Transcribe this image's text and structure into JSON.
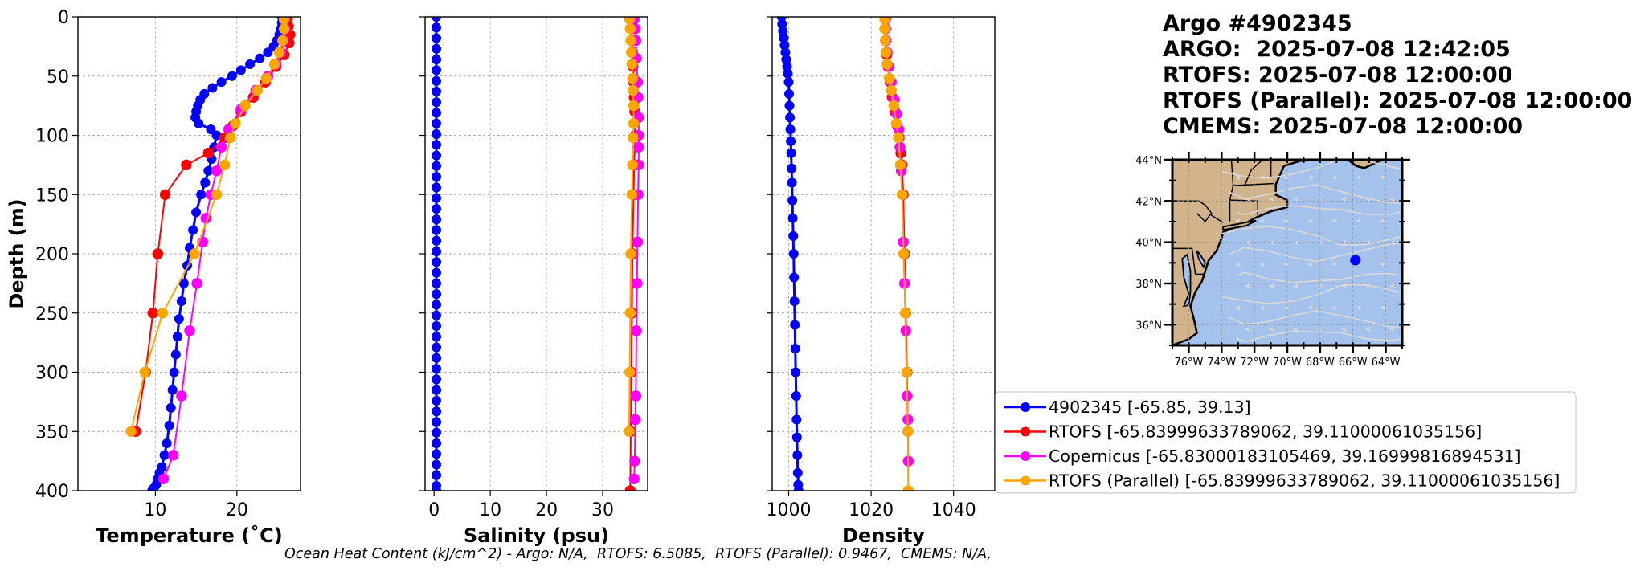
{
  "header": {
    "title": "Argo #4902345",
    "argo_time": "ARGO:  2025-07-08 12:42:05",
    "rtofs_time": "RTOFS: 2025-07-08 12:00:00",
    "rtofs_parallel_time": "RTOFS (Parallel): 2025-07-08 12:00:00",
    "cmems_time": "CMEMS: 2025-07-08 12:00:00"
  },
  "footer": {
    "ohc_text": "Ocean Heat Content (kJ/cm^2) - Argo: N/A,  RTOFS: 6.5085,  RTOFS (Parallel): 0.9467,  CMEMS: N/A,"
  },
  "colors": {
    "argo": "#0000ff",
    "rtofs": "#ff0000",
    "copernicus": "#ff00ff",
    "rtofs_parallel": "#ffa500",
    "land": "#d2b48c",
    "ocean": "#a4c2eb",
    "streamline": "#d9d9d9"
  },
  "legend": {
    "entries": [
      {
        "key": "argo",
        "label": "4902345 [-65.85, 39.13]"
      },
      {
        "key": "rtofs",
        "label": "RTOFS [-65.83999633789062, 39.11000061035156]"
      },
      {
        "key": "copernicus",
        "label": "Copernicus [-65.83000183105469, 39.16999816894531]"
      },
      {
        "key": "rtofs_parallel",
        "label": "RTOFS (Parallel) [-65.83999633789062, 39.11000061035156]"
      }
    ]
  },
  "map": {
    "lat_ticks": [
      {
        "value": 44,
        "label": "44°N"
      },
      {
        "value": 42,
        "label": "42°N"
      },
      {
        "value": 40,
        "label": "40°N"
      },
      {
        "value": 38,
        "label": "38°N"
      },
      {
        "value": 36,
        "label": "36°N"
      }
    ],
    "lon_ticks": [
      {
        "value": -76,
        "label": "76°W"
      },
      {
        "value": -74,
        "label": "74°W"
      },
      {
        "value": -72,
        "label": "72°W"
      },
      {
        "value": -70,
        "label": "70°W"
      },
      {
        "value": -68,
        "label": "68°W"
      },
      {
        "value": -66,
        "label": "66°W"
      },
      {
        "value": -64,
        "label": "64°W"
      }
    ],
    "lon_range": [
      -77,
      -63
    ],
    "lat_range": [
      35,
      44
    ],
    "float_location": {
      "lon": -65.85,
      "lat": 39.13
    }
  },
  "chart_data": [
    {
      "type": "line",
      "xlabel": "Temperature (˚C)",
      "ylabel": "Depth (m)",
      "xlim": [
        0.5,
        27.8
      ],
      "ylim": [
        400,
        0
      ],
      "xticks": [
        10,
        20
      ],
      "yticks": [
        0,
        50,
        100,
        150,
        200,
        250,
        300,
        350,
        400
      ],
      "series": [
        {
          "key": "argo",
          "marker_size": 7,
          "x": [
            25.5,
            25.5,
            25.4,
            25.2,
            24.9,
            24.5,
            23.8,
            22.8,
            21.6,
            20.5,
            19.4,
            18.1,
            17.0,
            16.0,
            15.5,
            15.2,
            15.0,
            14.9,
            15.3,
            16.8,
            17.5,
            17.2,
            16.9,
            16.5,
            16.1,
            15.6,
            15.0,
            14.6,
            14.2,
            13.9,
            13.5,
            13.2,
            12.9,
            12.7,
            12.5,
            12.3,
            12.1,
            11.9,
            11.7,
            11.4,
            11.1,
            10.8,
            10.5,
            10.3,
            10.1,
            9.8,
            9.6
          ],
          "y": [
            0,
            5,
            10,
            15,
            20,
            25,
            30,
            35,
            40,
            45,
            50,
            55,
            60,
            65,
            70,
            75,
            80,
            85,
            90,
            95,
            100,
            110,
            120,
            130,
            140,
            150,
            165,
            180,
            195,
            210,
            225,
            240,
            255,
            270,
            285,
            300,
            315,
            330,
            345,
            360,
            370,
            380,
            385,
            390,
            395,
            398,
            400
          ]
        },
        {
          "key": "rtofs",
          "marker_size": 8,
          "x": [
            26.2,
            26.3,
            26.5,
            26.4,
            25.8,
            24.8,
            23.5,
            22.0,
            20.5,
            19.5,
            18.5,
            16.5,
            13.8,
            11.2,
            10.3,
            9.7,
            8.8,
            7.6
          ],
          "y": [
            2,
            8,
            15,
            22,
            32,
            42,
            55,
            68,
            80,
            92,
            102,
            115,
            125,
            150,
            200,
            250,
            300,
            350
          ]
        },
        {
          "key": "copernicus",
          "marker_size": 8,
          "x": [
            25.8,
            25.9,
            25.7,
            25.4,
            24.8,
            23.8,
            22.3,
            20.5,
            19.0,
            18.1,
            17.5,
            16.8,
            16.2,
            15.8,
            15.1,
            14.2,
            13.2,
            12.2,
            11.0
          ],
          "y": [
            2,
            10,
            20,
            30,
            40,
            50,
            62,
            78,
            95,
            110,
            130,
            150,
            170,
            190,
            225,
            265,
            320,
            370,
            390
          ]
        },
        {
          "key": "rtofs_parallel",
          "marker_size": 8,
          "x": [
            25.8,
            25.8,
            25.6,
            25.2,
            24.6,
            23.6,
            22.5,
            21.0,
            19.8,
            19.2,
            18.5,
            17.5,
            14.8,
            10.9,
            8.7,
            7.0
          ],
          "y": [
            2,
            10,
            20,
            30,
            40,
            52,
            62,
            75,
            90,
            102,
            125,
            150,
            200,
            250,
            300,
            350
          ]
        }
      ]
    },
    {
      "type": "line",
      "xlabel": "Salinity (psu)",
      "ylabel": "",
      "xlim": [
        -1.6,
        38
      ],
      "ylim": [
        400,
        0
      ],
      "xticks": [
        0,
        10,
        20,
        30
      ],
      "yticks": [
        0,
        50,
        100,
        150,
        200,
        250,
        300,
        350,
        400
      ],
      "series": [
        {
          "key": "argo",
          "marker_size": 7,
          "x": [
            0.4,
            0.4,
            0.4,
            0.4,
            0.4,
            0.4,
            0.4,
            0.4,
            0.4,
            0.4,
            0.4,
            0.4,
            0.4,
            0.4,
            0.4,
            0.4,
            0.4,
            0.4,
            0.4,
            0.4,
            0.4,
            0.4,
            0.4,
            0.4,
            0.4,
            0.4,
            0.4,
            0.4,
            0.4,
            0.4,
            0.4,
            0.4,
            0.4,
            0.4,
            0.4,
            0.4,
            0.4,
            0.4,
            0.4,
            0.4,
            0.4,
            0.4,
            0.4,
            0.4,
            0.4,
            0.4
          ],
          "y": [
            0,
            9,
            18,
            27,
            36,
            45,
            54,
            63,
            72,
            81,
            90,
            99,
            108,
            117,
            126,
            135,
            144,
            153,
            162,
            171,
            180,
            189,
            198,
            207,
            216,
            225,
            234,
            243,
            252,
            261,
            270,
            279,
            288,
            297,
            306,
            315,
            324,
            333,
            342,
            351,
            360,
            369,
            378,
            387,
            396,
            400
          ]
        },
        {
          "key": "rtofs",
          "marker_size": 8,
          "x": [
            35.0,
            35.1,
            35.2,
            35.3,
            35.4,
            35.5,
            35.6,
            35.7,
            35.8,
            35.6,
            35.5,
            35.3,
            35.2,
            35.1,
            35.0,
            34.9
          ],
          "y": [
            2,
            10,
            20,
            30,
            42,
            55,
            68,
            80,
            100,
            125,
            150,
            200,
            250,
            300,
            350,
            400
          ]
        },
        {
          "key": "copernicus",
          "marker_size": 8,
          "x": [
            35.6,
            35.8,
            35.9,
            36.0,
            36.2,
            36.3,
            36.4,
            36.4,
            36.4,
            36.4,
            36.3,
            36.2,
            36.1,
            36.0,
            35.9,
            35.8,
            35.7,
            35.6
          ],
          "y": [
            2,
            10,
            20,
            35,
            55,
            68,
            85,
            100,
            110,
            125,
            150,
            190,
            225,
            265,
            320,
            340,
            375,
            390
          ]
        },
        {
          "key": "rtofs_parallel",
          "marker_size": 8,
          "x": [
            34.8,
            34.9,
            35.0,
            35.1,
            35.2,
            35.3,
            35.4,
            35.5,
            35.5,
            35.4,
            35.3,
            35.2,
            35.0,
            34.9,
            34.8,
            34.7
          ],
          "y": [
            2,
            10,
            20,
            30,
            40,
            52,
            62,
            75,
            90,
            102,
            125,
            150,
            200,
            250,
            300,
            350
          ]
        }
      ]
    },
    {
      "type": "line",
      "xlabel": "Density",
      "ylabel": "",
      "xlim": [
        996,
        1050
      ],
      "ylim": [
        400,
        0
      ],
      "xticks": [
        1000,
        1020,
        1040
      ],
      "yticks": [
        0,
        50,
        100,
        150,
        200,
        250,
        300,
        350,
        400
      ],
      "series": [
        {
          "key": "argo",
          "marker_size": 7,
          "x": [
            998.3,
            998.4,
            998.6,
            998.8,
            999.0,
            999.2,
            999.4,
            999.6,
            999.8,
            1000.0,
            1000.1,
            1000.2,
            1000.3,
            1000.4,
            1000.5,
            1000.6,
            1000.7,
            1000.8,
            1000.9,
            1001.0,
            1001.1,
            1001.2,
            1001.3,
            1001.4,
            1001.5,
            1001.6,
            1001.7,
            1001.8,
            1001.9,
            1002.0,
            1002.1,
            1002.2,
            1002.3,
            1002.4
          ],
          "y": [
            0,
            6,
            12,
            18,
            24,
            30,
            36,
            42,
            48,
            55,
            65,
            75,
            85,
            95,
            105,
            115,
            128,
            140,
            155,
            170,
            185,
            200,
            220,
            240,
            260,
            280,
            300,
            320,
            340,
            355,
            370,
            385,
            395,
            400
          ]
        },
        {
          "key": "rtofs",
          "marker_size": 8,
          "x": [
            1023.5,
            1023.5,
            1023.6,
            1023.8,
            1024.1,
            1024.6,
            1025.1,
            1025.7,
            1026.3,
            1026.8,
            1027.2,
            1027.5,
            1027.8,
            1028.1,
            1028.4,
            1028.7,
            1028.9
          ],
          "y": [
            2,
            10,
            20,
            32,
            42,
            55,
            68,
            80,
            92,
            102,
            115,
            125,
            150,
            200,
            250,
            300,
            350
          ]
        },
        {
          "key": "copernicus",
          "marker_size": 8,
          "x": [
            1023.4,
            1023.5,
            1023.6,
            1023.9,
            1024.3,
            1024.9,
            1025.6,
            1026.2,
            1026.7,
            1027.0,
            1027.3,
            1027.6,
            1027.8,
            1028.1,
            1028.4,
            1028.7,
            1028.9,
            1029.0
          ],
          "y": [
            2,
            10,
            20,
            30,
            42,
            55,
            70,
            82,
            95,
            110,
            130,
            150,
            190,
            225,
            265,
            320,
            340,
            375
          ]
        },
        {
          "key": "rtofs_parallel",
          "marker_size": 8,
          "x": [
            1023.3,
            1023.3,
            1023.4,
            1023.6,
            1023.9,
            1024.4,
            1024.9,
            1025.5,
            1026.1,
            1026.6,
            1027.1,
            1027.5,
            1027.9,
            1028.3,
            1028.6,
            1028.9,
            1029.0
          ],
          "y": [
            2,
            10,
            20,
            30,
            40,
            52,
            62,
            75,
            90,
            102,
            125,
            150,
            200,
            250,
            300,
            350,
            400
          ]
        }
      ]
    }
  ]
}
